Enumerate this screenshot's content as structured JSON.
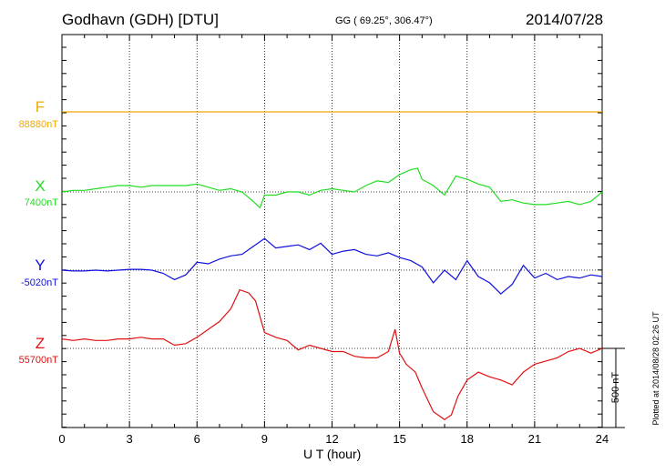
{
  "header": {
    "station": "Godhavn (GDH)  [DTU]",
    "coords": "GG ( 69.25°, 306.47°)",
    "date": "2014/07/28"
  },
  "components": [
    {
      "label": "F",
      "baseline": "88880nT",
      "color": "#f0a800"
    },
    {
      "label": "X",
      "baseline": "7400nT",
      "color": "#22dd22"
    },
    {
      "label": "Y",
      "baseline": "-5020nT",
      "color": "#1010dd"
    },
    {
      "label": "Z",
      "baseline": "55700nT",
      "color": "#e01010"
    }
  ],
  "scale_label": "500 nT",
  "plotted_label": "Plotted at 2014/08/28 02:26 UT",
  "chart_data": {
    "type": "line",
    "xlabel": "U T (hour)",
    "xlim": [
      0,
      24
    ],
    "xticks": [
      0,
      3,
      6,
      9,
      12,
      15,
      18,
      21,
      24
    ],
    "grid": true,
    "scale_bar_nT": 500,
    "series": [
      {
        "name": "F",
        "unit": "nT",
        "baseline_nT": 88880,
        "color": "#f0a800",
        "x": [
          0,
          4,
          8,
          12,
          16,
          20,
          24
        ],
        "y": [
          0,
          0,
          0,
          0,
          0,
          0,
          0
        ]
      },
      {
        "name": "X",
        "unit": "nT",
        "baseline_nT": 7400,
        "color": "#22dd22",
        "x": [
          0,
          0.5,
          1,
          1.5,
          2,
          2.5,
          3,
          3.5,
          4,
          4.5,
          5,
          5.5,
          6,
          6.5,
          7,
          7.5,
          8,
          8.5,
          8.8,
          9,
          9.5,
          10,
          10.5,
          11,
          11.5,
          12,
          12.5,
          13,
          13.5,
          14,
          14.5,
          15,
          15.5,
          15.8,
          16,
          16.5,
          17,
          17.5,
          18,
          18.5,
          19,
          19.5,
          20,
          20.5,
          21,
          21.5,
          22,
          22.5,
          23,
          23.5,
          24
        ],
        "y": [
          0,
          10,
          10,
          20,
          30,
          40,
          40,
          30,
          40,
          40,
          40,
          40,
          50,
          30,
          10,
          20,
          0,
          -60,
          -100,
          -20,
          -20,
          0,
          0,
          -20,
          10,
          20,
          10,
          0,
          40,
          70,
          60,
          110,
          140,
          150,
          80,
          40,
          -20,
          100,
          80,
          50,
          30,
          -60,
          -50,
          -70,
          -80,
          -80,
          -70,
          -60,
          -80,
          -60,
          0
        ]
      },
      {
        "name": "Y",
        "unit": "nT",
        "baseline_nT": -5020,
        "color": "#1010dd",
        "x": [
          0,
          0.5,
          1,
          1.5,
          2,
          2.5,
          3,
          3.5,
          4,
          4.5,
          5,
          5.5,
          6,
          6.5,
          7,
          7.5,
          8,
          8.5,
          9,
          9.5,
          10,
          10.5,
          11,
          11.5,
          12,
          12.5,
          13,
          13.5,
          14,
          14.5,
          15,
          15.5,
          16,
          16.5,
          17,
          17.5,
          18,
          18.5,
          19,
          19.5,
          20,
          20.5,
          21,
          21.5,
          22,
          22.5,
          23,
          23.5,
          24
        ],
        "y": [
          0,
          -5,
          -5,
          0,
          -5,
          0,
          5,
          5,
          0,
          -20,
          -60,
          -30,
          50,
          40,
          70,
          90,
          100,
          150,
          200,
          140,
          150,
          160,
          130,
          170,
          100,
          120,
          130,
          100,
          90,
          110,
          80,
          60,
          20,
          -80,
          0,
          -60,
          60,
          -40,
          -80,
          -150,
          -90,
          30,
          -50,
          -20,
          -60,
          -40,
          -50,
          -30,
          -40
        ]
      },
      {
        "name": "Z",
        "unit": "nT",
        "baseline_nT": 55700,
        "color": "#e01010",
        "x": [
          0,
          0.5,
          1,
          1.5,
          2,
          2.5,
          3,
          3.5,
          4,
          4.5,
          5,
          5.5,
          6,
          6.5,
          7,
          7.5,
          7.9,
          8.3,
          8.6,
          9,
          9.5,
          10,
          10.5,
          11,
          11.5,
          12,
          12.5,
          13,
          13.5,
          14,
          14.5,
          14.8,
          15,
          15.3,
          15.7,
          16,
          16.5,
          17,
          17.3,
          17.6,
          18,
          18.5,
          19,
          19.5,
          20,
          20.5,
          21,
          21.5,
          22,
          22.5,
          23,
          23.5,
          24
        ],
        "y": [
          60,
          50,
          60,
          50,
          50,
          60,
          60,
          70,
          60,
          60,
          20,
          30,
          70,
          120,
          170,
          250,
          370,
          350,
          300,
          100,
          70,
          50,
          -10,
          20,
          0,
          -20,
          -20,
          -50,
          -60,
          -60,
          -20,
          120,
          -30,
          -100,
          -150,
          -250,
          -400,
          -450,
          -420,
          -300,
          -200,
          -150,
          -180,
          -200,
          -230,
          -150,
          -100,
          -80,
          -60,
          -20,
          0,
          -30,
          0
        ]
      }
    ]
  }
}
